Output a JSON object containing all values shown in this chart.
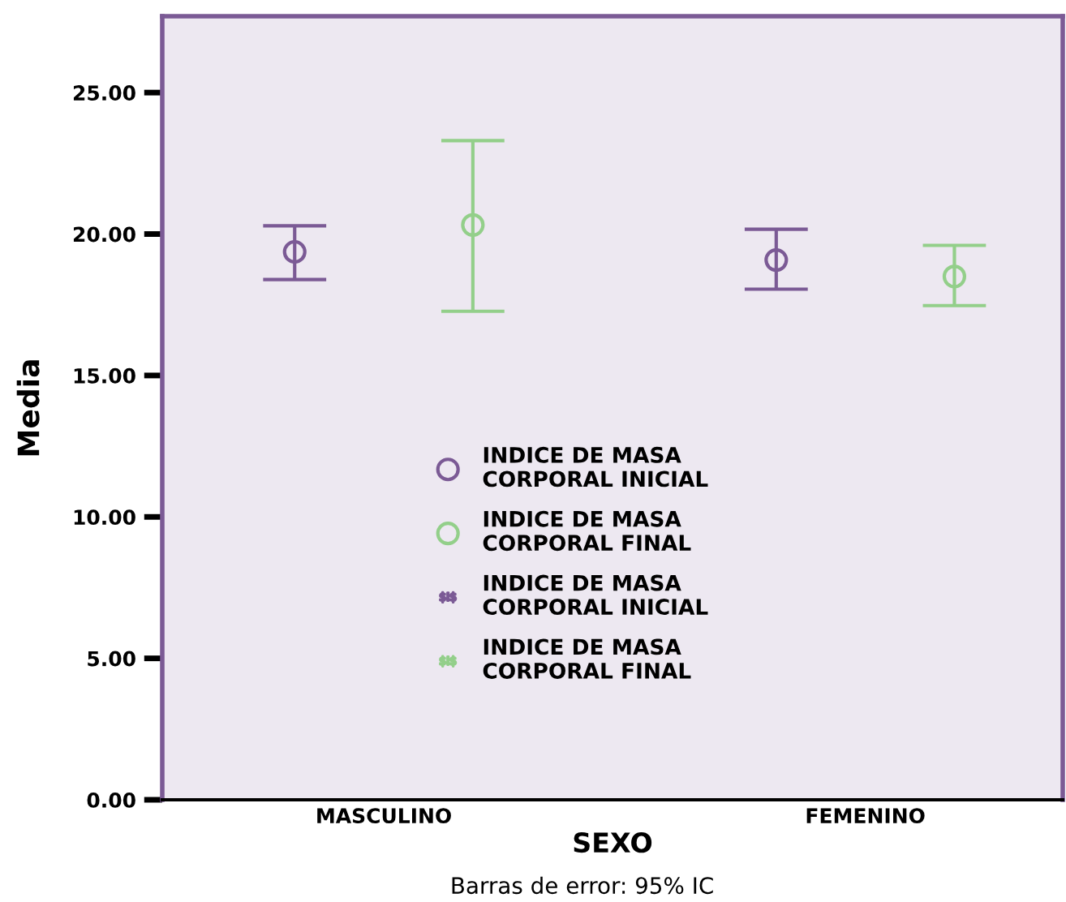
{
  "chart_data": {
    "type": "scatter",
    "xlabel": "SEXO",
    "ylabel": "Media",
    "categories": [
      "MASCULINO",
      "FEMENINO"
    ],
    "series": [
      {
        "name": "INDICE DE MASA CORPORAL INICIAL",
        "color": "#7b5a95",
        "values": [
          19.37,
          19.08
        ],
        "errors": [
          [
            18.39,
            20.29
          ],
          [
            18.05,
            20.17
          ]
        ]
      },
      {
        "name": "INDICE DE MASA CORPORAL FINAL",
        "color": "#93cf8a",
        "values": [
          20.32,
          18.5
        ],
        "errors": [
          [
            17.27,
            23.3
          ],
          [
            17.47,
            19.6
          ]
        ]
      }
    ],
    "ylim": [
      0,
      27.7
    ],
    "yticks": [
      {
        "value": 0,
        "label": "0.00"
      },
      {
        "value": 5,
        "label": "5.00"
      },
      {
        "value": 10,
        "label": "10.00"
      },
      {
        "value": 15,
        "label": "15.00"
      },
      {
        "value": 20,
        "label": "20.00"
      },
      {
        "value": 25,
        "label": "25.00"
      }
    ],
    "marker": "circle",
    "legend": "center",
    "grid": false,
    "annotations": [
      "Barras de error: 95% IC"
    ]
  }
}
